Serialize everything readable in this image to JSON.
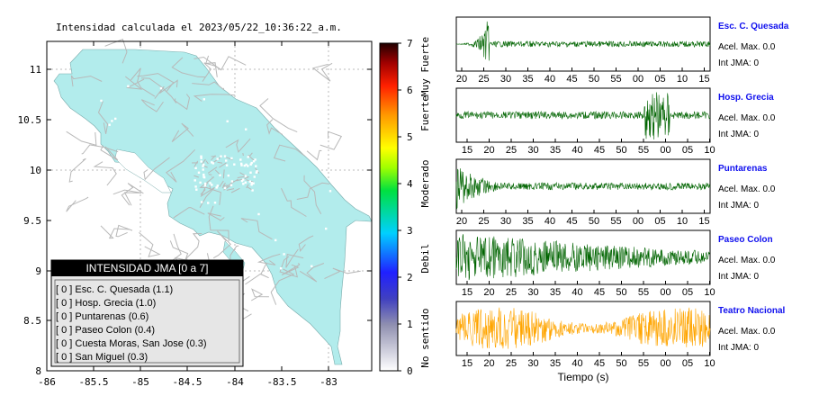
{
  "map": {
    "title": "Intensidad calculada el 2023/05/22_10:36:22_a.m.",
    "x_ticks": [
      "-86",
      "-85.5",
      "-85",
      "-84.5",
      "-84",
      "-83.5",
      "-83"
    ],
    "y_ticks": [
      "11",
      "10.5",
      "10",
      "9.5",
      "9",
      "8.5",
      "8"
    ],
    "land_color": "#b2ecec",
    "road_color": "#b8b8b8",
    "station_color": "#ffffff"
  },
  "legend": {
    "header": "INTENSIDAD JMA [0 a 7]",
    "items": [
      "[ 0 ] Esc. C. Quesada (1.1)",
      "[ 0 ] Hosp. Grecia (1.0)",
      "[ 0 ] Puntarenas (0.6)",
      "[ 0 ] Paseo Colon (0.4)",
      "[ 0 ] Cuesta Moras, San Jose (0.3)",
      "[ 0 ] San Miguel (0.3)"
    ]
  },
  "colorbar": {
    "ticks": [
      "7",
      "6",
      "5",
      "4",
      "3",
      "2",
      "1",
      "0"
    ],
    "labels": [
      "Muy Fuerte",
      "Fuerte",
      "Moderado",
      "Debil",
      "No sentido"
    ]
  },
  "chart_data": [
    {
      "type": "line",
      "title": "Esc. C. Quesada",
      "x_ticks": [
        "20",
        "25",
        "30",
        "35",
        "40",
        "45",
        "50",
        "55",
        "00",
        "05",
        "10",
        "15"
      ],
      "color": "#006400",
      "annotations": [
        "Acel. Max. 0.0",
        "Int JMA: 0"
      ]
    },
    {
      "type": "line",
      "title": "Hosp. Grecia",
      "x_ticks": [
        "15",
        "20",
        "25",
        "30",
        "35",
        "40",
        "45",
        "50",
        "55",
        "00",
        "05",
        "10"
      ],
      "color": "#006400",
      "annotations": [
        "Acel. Max. 0.0",
        "Int JMA: 0"
      ]
    },
    {
      "type": "line",
      "title": "Puntarenas",
      "x_ticks": [
        "20",
        "25",
        "30",
        "35",
        "40",
        "45",
        "50",
        "55",
        "00",
        "05",
        "10",
        "15"
      ],
      "color": "#006400",
      "annotations": [
        "Acel. Max. 0.0",
        "Int JMA: 0"
      ]
    },
    {
      "type": "line",
      "title": "Paseo Colon",
      "x_ticks": [
        "15",
        "20",
        "25",
        "30",
        "35",
        "40",
        "45",
        "50",
        "55",
        "00",
        "05",
        "10"
      ],
      "color": "#006400",
      "annotations": [
        "Acel. Max. 0.0",
        "Int JMA: 0"
      ]
    },
    {
      "type": "line",
      "title": "Teatro Nacional",
      "x_ticks": [
        "15",
        "20",
        "25",
        "30",
        "35",
        "40",
        "45",
        "50",
        "55",
        "00",
        "05",
        "10"
      ],
      "xlabel": "Tiempo (s)",
      "color": "#ffa500",
      "annotations": [
        "Acel. Max. 0.0",
        "Int JMA: 0"
      ]
    }
  ]
}
